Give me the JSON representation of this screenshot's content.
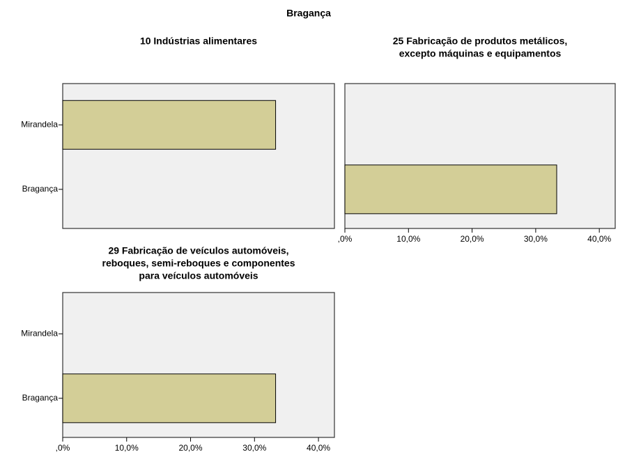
{
  "title": "Bragança",
  "chart_data": [
    {
      "type": "bar",
      "orientation": "horizontal",
      "title": [
        "10 Indústrias alimentares"
      ],
      "categories": [
        "Mirandela",
        "Bragança"
      ],
      "values": [
        33.3,
        0
      ],
      "color": "#d3ce97",
      "xlim": [
        0,
        42.5
      ]
    },
    {
      "type": "bar",
      "orientation": "horizontal",
      "title": [
        "25 Fabricação de produtos metálicos,",
        "excepto máquinas e equipamentos"
      ],
      "categories": [
        null,
        null
      ],
      "values": [
        0,
        33.3
      ],
      "color": "#d3ce97",
      "xlim": [
        0,
        42.5
      ],
      "xticks": [
        {
          "value": 0,
          "label": ",0%"
        },
        {
          "value": 10,
          "label": "10,0%"
        },
        {
          "value": 20,
          "label": "20,0%"
        },
        {
          "value": 30,
          "label": "30,0%"
        },
        {
          "value": 40,
          "label": "40,0%"
        }
      ]
    },
    {
      "type": "bar",
      "orientation": "horizontal",
      "title": [
        "29 Fabricação de veículos automóveis,",
        "reboques, semi-reboques e componentes",
        "para veículos automóveis"
      ],
      "categories": [
        "Mirandela",
        "Bragança"
      ],
      "values": [
        0,
        33.3
      ],
      "color": "#d3ce97",
      "xlim": [
        0,
        42.5
      ],
      "xticks": [
        {
          "value": 0,
          "label": ",0%"
        },
        {
          "value": 10,
          "label": "10,0%"
        },
        {
          "value": 20,
          "label": "20,0%"
        },
        {
          "value": 30,
          "label": "30,0%"
        },
        {
          "value": 40,
          "label": "40,0%"
        }
      ]
    }
  ]
}
